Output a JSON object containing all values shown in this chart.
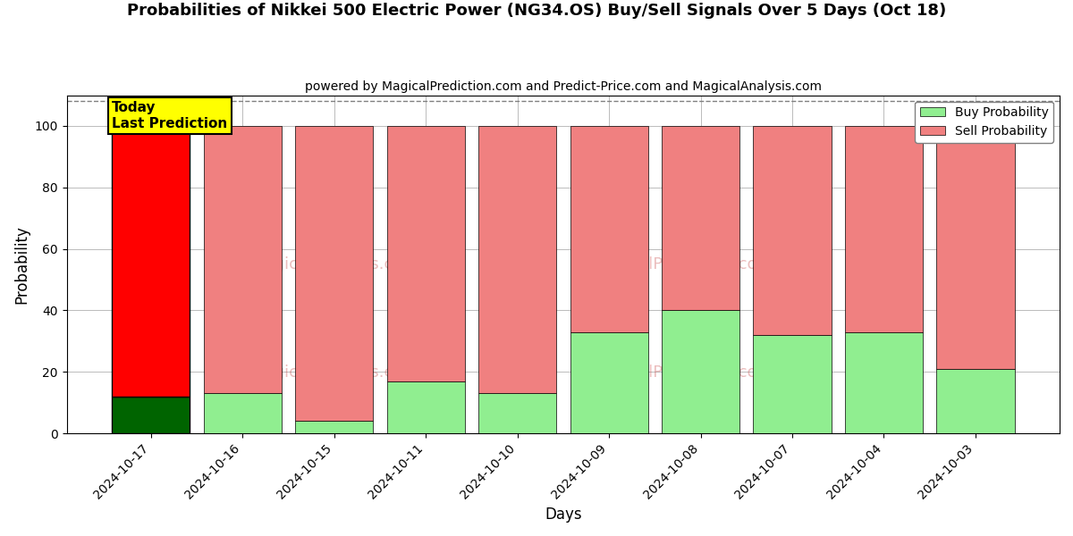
{
  "title": "Probabilities of Nikkei 500 Electric Power (NG34.OS) Buy/Sell Signals Over 5 Days (Oct 18)",
  "subtitle": "powered by MagicalPrediction.com and Predict-Price.com and MagicalAnalysis.com",
  "xlabel": "Days",
  "ylabel": "Probability",
  "dates": [
    "2024-10-17",
    "2024-10-16",
    "2024-10-15",
    "2024-10-11",
    "2024-10-10",
    "2024-10-09",
    "2024-10-08",
    "2024-10-07",
    "2024-10-04",
    "2024-10-03"
  ],
  "buy_probs": [
    12,
    13,
    4,
    17,
    13,
    33,
    40,
    32,
    33,
    21
  ],
  "sell_probs": [
    88,
    87,
    96,
    83,
    87,
    67,
    60,
    68,
    67,
    79
  ],
  "today_index": 0,
  "buy_color_today": "#006400",
  "sell_color_today": "#ff0000",
  "buy_color_normal": "#90ee90",
  "sell_color_normal": "#f08080",
  "today_box_color": "#ffff00",
  "today_box_text": "Today\nLast Prediction",
  "legend_buy_label": "Buy Probability",
  "legend_sell_label": "Sell Probability",
  "ylim": [
    0,
    110
  ],
  "dashed_line_y": 108,
  "bar_width": 0.85,
  "background_color": "#ffffff",
  "grid_color": "#bbbbbb"
}
